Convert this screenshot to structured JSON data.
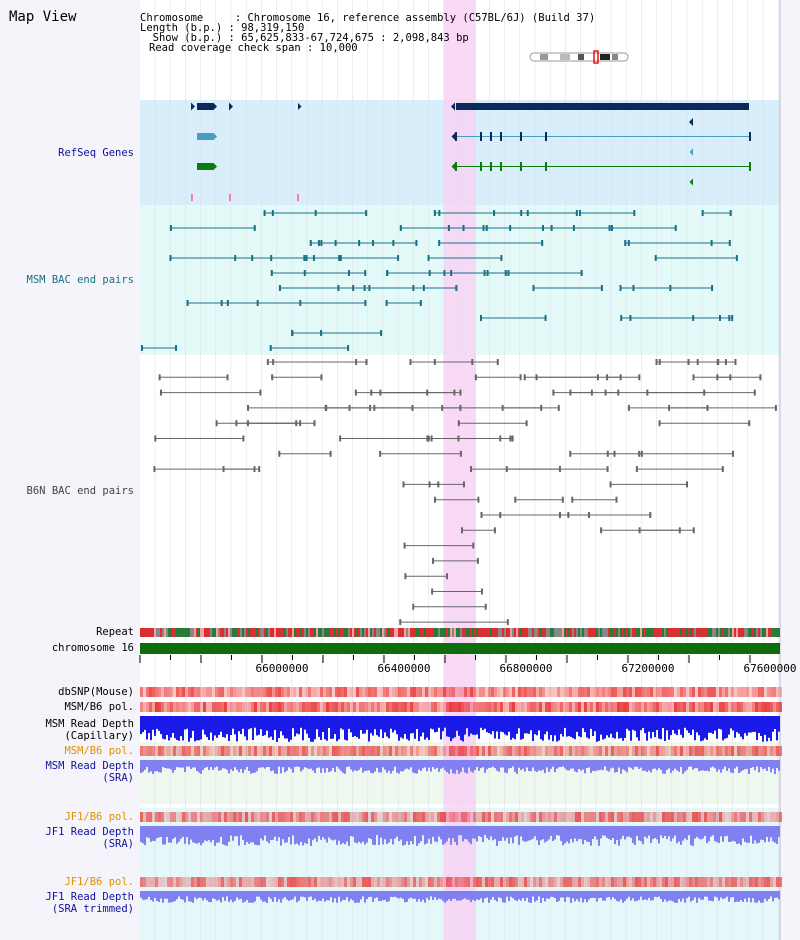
{
  "header": {
    "title": "Map View",
    "info_lines": [
      "Chromosome     : Chromosome 16, reference assembly (C57BL/6J) (Build 37)",
      "Length (b.p.) : 98,319,150",
      "  Show (b.p.) : 65,625,833-67,724,675 : 2,098,843 bp",
      "Read coverage check span : 10,000"
    ]
  },
  "tracks": {
    "refseq": "RefSeq Genes",
    "msm_bac": "MSM BAC end pairs",
    "b6n_bac": "B6N BAC end pairs",
    "repeat": "Repeat",
    "chromosome": "chromosome 16",
    "dbsnp": "dbSNP(Mouse)",
    "msm_pol": "MSM/B6 pol.",
    "msm_depth_cap": "MSM Read Depth\n(Capillary)",
    "msm_pol2": "MSM/B6 pol.",
    "msm_depth_sra": "MSM Read Depth\n(SRA)",
    "jf1_pol": "JF1/B6 pol.",
    "jf1_depth": "JF1 Read Depth\n(SRA)",
    "jf1_pol2": "JF1/B6 pol.",
    "jf1_depth_trim": "JF1 Read Depth\n(SRA trimmed)"
  },
  "axis": {
    "ticks": [
      "66000000",
      "66400000",
      "66800000",
      "67200000",
      "67600000"
    ]
  },
  "colors": {
    "highlight": "#f8d2f4",
    "refseq_bg": "#d8eefa",
    "msm_bg": "#e4faf8",
    "gene_dark": "#0a2a5c",
    "gene_teal": "#4a9cc0",
    "gene_green": "#0e7a0e",
    "msm_feature": "#1a6f88",
    "b6n_feature": "#666666",
    "chromosome_bar": "#0e6e0e",
    "snp_red": "#e83030",
    "depth_blue": "#1a1ae8",
    "depth_light_blue": "#8080f0",
    "label_navy": "#1010a0",
    "label_orange": "#e09000",
    "label_teal": "#1a6f88"
  }
}
